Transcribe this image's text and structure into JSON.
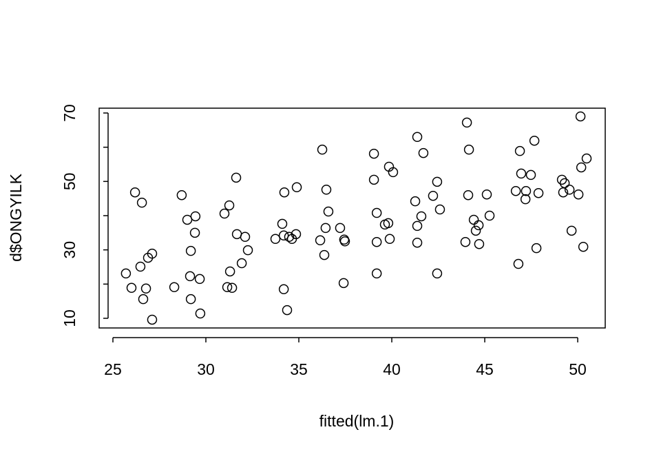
{
  "chart_data": {
    "type": "scatter",
    "xlabel": "fitted(lm.1)",
    "ylabel": "d$ONGYILK",
    "xlim": [
      24.26,
      51.48
    ],
    "ylim": [
      7.18,
      71.41
    ],
    "xticks": [
      25,
      30,
      35,
      40,
      45,
      50
    ],
    "yticks": [
      10,
      30,
      50,
      70
    ],
    "yticks_minor": [
      20,
      40,
      60
    ],
    "color": "#000000",
    "x": [
      25.7,
      26.0,
      26.19,
      26.48,
      26.56,
      26.63,
      26.78,
      26.89,
      27.11,
      27.11,
      28.3,
      28.7,
      29.0,
      29.15,
      29.19,
      29.19,
      29.41,
      29.44,
      29.67,
      29.7,
      31.0,
      31.26,
      31.15,
      31.3,
      31.41,
      31.63,
      31.67,
      31.93,
      32.11,
      32.26,
      33.74,
      34.11,
      34.22,
      34.19,
      34.19,
      34.37,
      34.48,
      34.63,
      34.85,
      34.89,
      36.15,
      36.26,
      36.37,
      36.44,
      36.48,
      36.59,
      37.22,
      37.41,
      37.44,
      37.48,
      39.04,
      39.04,
      39.19,
      39.19,
      39.19,
      39.63,
      39.81,
      39.85,
      39.89,
      40.07,
      41.26,
      41.37,
      41.37,
      41.37,
      41.59,
      41.7,
      42.22,
      42.44,
      42.44,
      42.59,
      43.96,
      44.04,
      44.11,
      44.15,
      44.41,
      44.52,
      44.67,
      44.7,
      45.11,
      45.26,
      46.67,
      46.81,
      46.89,
      46.96,
      47.19,
      47.22,
      47.48,
      47.67,
      47.78,
      47.89,
      49.15,
      49.22,
      49.3,
      49.56,
      49.67,
      50.04,
      50.15,
      50.19,
      50.3,
      50.48
    ],
    "values": [
      23.1,
      18.9,
      46.8,
      25.1,
      43.8,
      15.6,
      18.7,
      27.7,
      28.9,
      9.6,
      19.1,
      46.0,
      38.8,
      22.3,
      29.7,
      15.6,
      35.0,
      39.8,
      21.5,
      11.4,
      40.6,
      43.0,
      19.1,
      23.7,
      18.9,
      51.1,
      34.6,
      26.1,
      33.8,
      29.9,
      33.2,
      37.6,
      46.8,
      34.2,
      18.5,
      12.4,
      33.8,
      33.2,
      34.6,
      48.3,
      32.8,
      59.3,
      28.5,
      36.4,
      47.6,
      41.2,
      36.4,
      20.3,
      33.0,
      32.5,
      58.1,
      50.5,
      40.8,
      32.3,
      23.1,
      37.4,
      37.8,
      54.3,
      33.2,
      52.7,
      44.2,
      63.0,
      37.0,
      32.1,
      39.8,
      58.3,
      45.8,
      49.9,
      23.1,
      41.8,
      32.3,
      67.2,
      46.0,
      59.3,
      38.8,
      35.6,
      37.2,
      31.7,
      46.2,
      40.0,
      47.2,
      25.9,
      58.9,
      52.3,
      44.8,
      47.2,
      51.9,
      61.9,
      30.5,
      46.6,
      50.5,
      46.8,
      49.5,
      47.6,
      35.6,
      46.2,
      69.0,
      54.1,
      30.9,
      56.7
    ]
  }
}
